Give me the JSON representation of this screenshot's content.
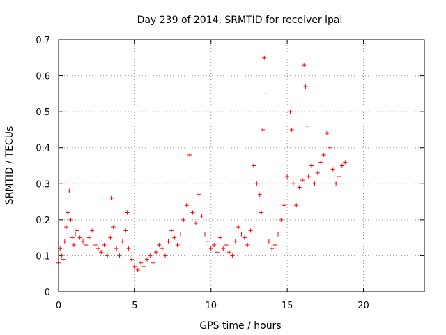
{
  "chart_data": {
    "type": "scatter",
    "title": "Day 239 of 2014, SRMTID for receiver lpal",
    "xlabel": "GPS time / hours",
    "ylabel": "SRMTID / TECUs",
    "xlim": [
      0,
      24
    ],
    "ylim": [
      0,
      0.7
    ],
    "xticks": [
      0,
      5,
      10,
      15,
      20
    ],
    "xtick_labels": [
      "0",
      "5",
      "10",
      "15",
      "20"
    ],
    "yticks": [
      0,
      0.1,
      0.2,
      0.3,
      0.4,
      0.5,
      0.6,
      0.7
    ],
    "ytick_labels": [
      "0",
      "0.1",
      "0.2",
      "0.3",
      "0.4",
      "0.5",
      "0.6",
      "0.7"
    ],
    "grid": true,
    "marker": "plus",
    "color": "#ff0000",
    "series": [
      {
        "name": "SRMTID",
        "x": [
          0.0,
          0.1,
          0.2,
          0.3,
          0.4,
          0.5,
          0.6,
          0.7,
          0.8,
          0.9,
          1.0,
          1.1,
          1.2,
          1.4,
          1.6,
          1.8,
          2.0,
          2.2,
          2.4,
          2.6,
          2.8,
          3.0,
          3.2,
          3.4,
          3.5,
          3.6,
          3.8,
          4.0,
          4.2,
          4.4,
          4.5,
          4.6,
          4.8,
          5.0,
          5.2,
          5.4,
          5.6,
          5.8,
          6.0,
          6.2,
          6.4,
          6.6,
          6.8,
          7.0,
          7.2,
          7.4,
          7.6,
          7.8,
          8.0,
          8.2,
          8.4,
          8.6,
          8.8,
          9.0,
          9.2,
          9.4,
          9.6,
          9.8,
          10.0,
          10.2,
          10.4,
          10.6,
          10.8,
          11.0,
          11.2,
          11.4,
          11.6,
          11.8,
          12.0,
          12.2,
          12.4,
          12.6,
          12.8,
          13.0,
          13.2,
          13.3,
          13.4,
          13.5,
          13.6,
          13.8,
          14.0,
          14.2,
          14.4,
          14.6,
          14.8,
          15.0,
          15.2,
          15.3,
          15.4,
          15.6,
          15.8,
          16.0,
          16.1,
          16.2,
          16.3,
          16.4,
          16.6,
          16.8,
          17.0,
          17.2,
          17.4,
          17.6,
          17.8,
          18.0,
          18.2,
          18.4,
          18.6,
          18.8
        ],
        "y": [
          0.08,
          0.12,
          0.1,
          0.09,
          0.14,
          0.18,
          0.22,
          0.28,
          0.2,
          0.15,
          0.13,
          0.16,
          0.17,
          0.15,
          0.14,
          0.13,
          0.15,
          0.17,
          0.13,
          0.12,
          0.11,
          0.13,
          0.1,
          0.15,
          0.26,
          0.18,
          0.12,
          0.1,
          0.14,
          0.17,
          0.22,
          0.12,
          0.09,
          0.07,
          0.06,
          0.08,
          0.07,
          0.09,
          0.1,
          0.08,
          0.11,
          0.13,
          0.12,
          0.1,
          0.14,
          0.17,
          0.15,
          0.13,
          0.16,
          0.2,
          0.24,
          0.38,
          0.22,
          0.19,
          0.27,
          0.21,
          0.16,
          0.14,
          0.12,
          0.13,
          0.11,
          0.15,
          0.12,
          0.13,
          0.11,
          0.1,
          0.14,
          0.18,
          0.16,
          0.15,
          0.13,
          0.17,
          0.35,
          0.3,
          0.27,
          0.22,
          0.45,
          0.65,
          0.55,
          0.14,
          0.12,
          0.13,
          0.16,
          0.2,
          0.24,
          0.32,
          0.5,
          0.45,
          0.3,
          0.24,
          0.29,
          0.31,
          0.63,
          0.57,
          0.46,
          0.32,
          0.35,
          0.3,
          0.33,
          0.36,
          0.38,
          0.44,
          0.4,
          0.34,
          0.3,
          0.32,
          0.35,
          0.36
        ]
      }
    ]
  }
}
